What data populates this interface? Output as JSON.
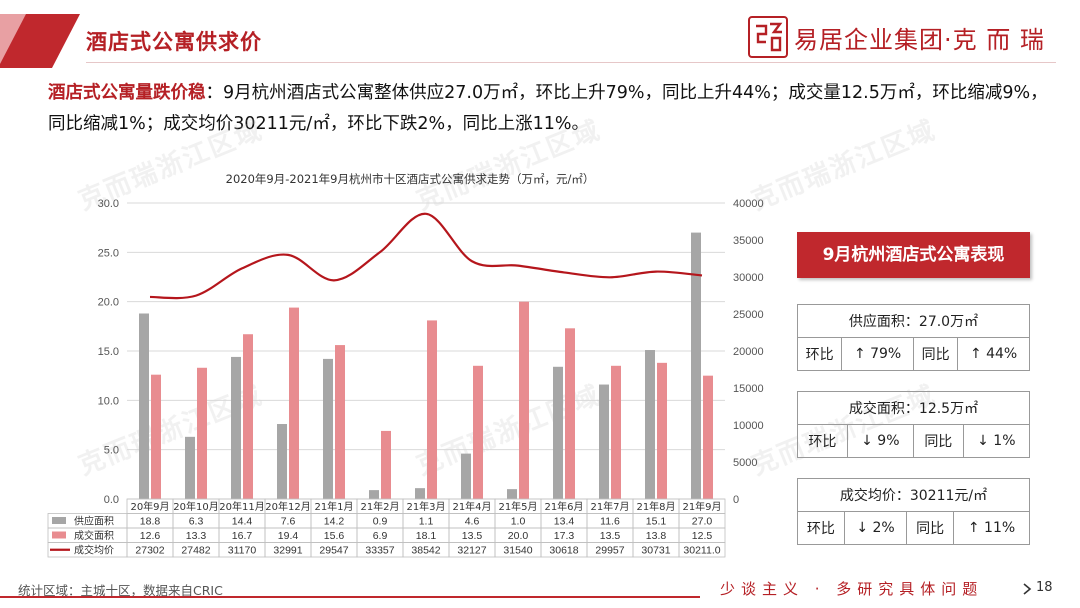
{
  "header": {
    "title": "酒店式公寓供求价",
    "brand": "易居企业集团·克 而 瑞"
  },
  "summary": {
    "highlight": "酒店式公寓量跌价稳",
    "text": "：9月杭州酒店式公寓整体供应27.0万㎡，环比上升79%，同比上升44%；成交量12.5万㎡，环比缩减9%，同比缩减1%；成交均价30211元/㎡，环比下跌2%，同比上涨11%。"
  },
  "watermark": "克而瑞浙江区域",
  "chart_data": {
    "type": "bar",
    "title": "2020年9月-2021年9月杭州市十区酒店式公寓供求走势（万㎡，元/㎡）",
    "categories": [
      "20年9月",
      "20年10月",
      "20年11月",
      "20年12月",
      "21年1月",
      "21年2月",
      "21年3月",
      "21年4月",
      "21年5月",
      "21年6月",
      "21年7月",
      "21年8月",
      "21年9月"
    ],
    "series": [
      {
        "name": "供应面积",
        "type": "bar",
        "axis": "left",
        "color": "#a6a6a6",
        "values": [
          18.8,
          6.3,
          14.4,
          7.6,
          14.2,
          0.9,
          1.1,
          4.6,
          1.0,
          13.4,
          11.6,
          15.1,
          27.0
        ]
      },
      {
        "name": "成交面积",
        "type": "bar",
        "axis": "left",
        "color": "#e88c90",
        "values": [
          12.6,
          13.3,
          16.7,
          19.4,
          15.6,
          6.9,
          18.1,
          13.5,
          20.0,
          17.3,
          13.5,
          13.8,
          12.5
        ]
      },
      {
        "name": "成交均价",
        "type": "line",
        "axis": "right",
        "color": "#b5161c",
        "values": [
          27302,
          27482,
          31170,
          32991,
          29547,
          33357,
          38542,
          32127,
          31540,
          30618,
          29957,
          30731,
          30211.0
        ]
      }
    ],
    "table_display": [
      [
        "18.8",
        "6.3",
        "14.4",
        "7.6",
        "14.2",
        "0.9",
        "1.1",
        "4.6",
        "1.0",
        "13.4",
        "11.6",
        "15.1",
        "27.0"
      ],
      [
        "12.6",
        "13.3",
        "16.7",
        "19.4",
        "15.6",
        "6.9",
        "18.1",
        "13.5",
        "20.0",
        "17.3",
        "13.5",
        "13.8",
        "12.5"
      ],
      [
        "27302",
        "27482",
        "31170",
        "32991",
        "29547",
        "33357",
        "38542",
        "32127",
        "31540",
        "30618",
        "29957",
        "30731",
        "30211.0"
      ]
    ],
    "ylim_left": [
      0,
      30
    ],
    "yticks_left": [
      "0.0",
      "5.0",
      "10.0",
      "15.0",
      "20.0",
      "25.0",
      "30.0"
    ],
    "ylim_right": [
      0,
      40000
    ],
    "yticks_right": [
      "0",
      "5000",
      "10000",
      "15000",
      "20000",
      "25000",
      "30000",
      "35000",
      "40000"
    ],
    "grid": true,
    "legend": "data-table"
  },
  "panel": {
    "banner": "9月杭州酒店式公寓表现",
    "cards": [
      {
        "head": "供应面积：27.0万㎡",
        "mom_label": "环比",
        "mom": "↑ 79%",
        "yoy_label": "同比",
        "yoy": "↑ 44%"
      },
      {
        "head": "成交面积：12.5万㎡",
        "mom_label": "环比",
        "mom": "↓ 9%",
        "yoy_label": "同比",
        "yoy": "↓ 1%"
      },
      {
        "head": "成交均价：30211元/㎡",
        "mom_label": "环比",
        "mom": "↓ 2%",
        "yoy_label": "同比",
        "yoy": "↑ 11%"
      }
    ]
  },
  "footer": {
    "source": "统计区域：主城十区，数据来自CRIC",
    "slogan": "少谈主义 · 多研究具体问题",
    "page": "18"
  },
  "colors": {
    "accent": "#b52025",
    "supply_bar": "#a6a6a6",
    "deal_bar": "#e88c90",
    "price_line": "#b5161c"
  }
}
